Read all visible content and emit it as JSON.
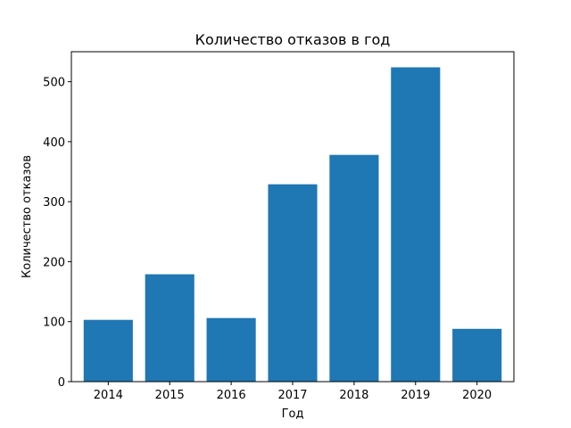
{
  "chart_data": {
    "type": "bar",
    "title": "Количество отказов в год",
    "xlabel": "Год",
    "ylabel": "Количество отказов",
    "categories": [
      "2014",
      "2015",
      "2016",
      "2017",
      "2018",
      "2019",
      "2020"
    ],
    "values": [
      103,
      179,
      106,
      329,
      378,
      524,
      88
    ],
    "ylim": [
      0,
      550
    ],
    "yticks": [
      0,
      100,
      200,
      300,
      400,
      500
    ],
    "grid": false,
    "legend": "none",
    "bar_color": "#1f77b4"
  }
}
